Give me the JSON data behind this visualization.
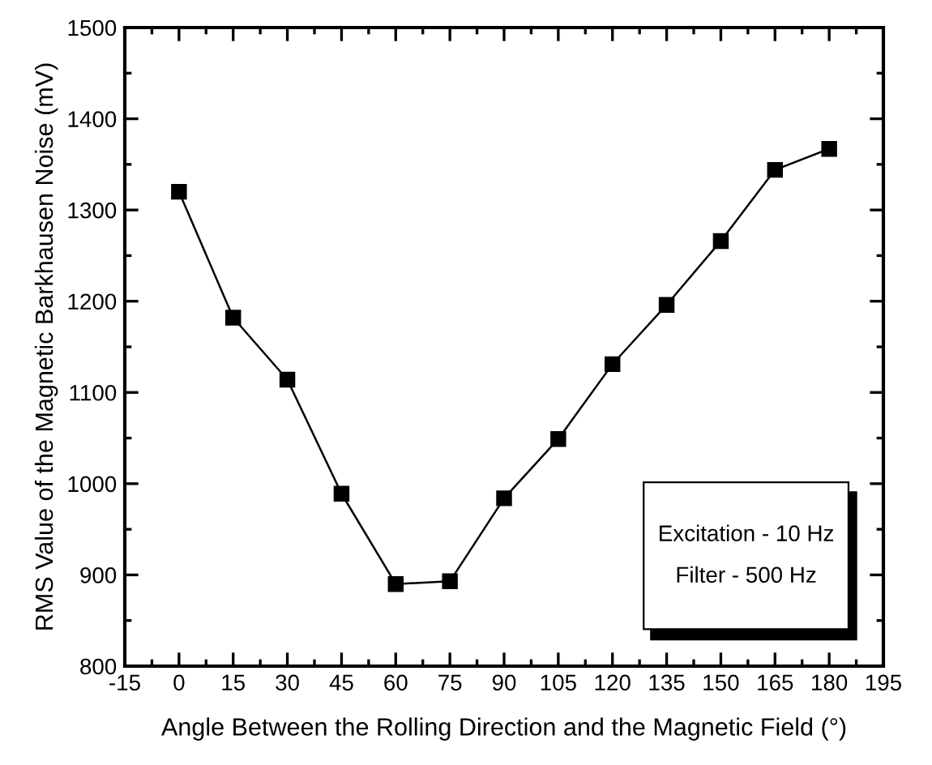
{
  "chart_data": {
    "type": "line",
    "xlabel": "Angle Between the Rolling Direction and the Magnetic Field (°)",
    "ylabel": "RMS Value of the Magnetic Barkhausen Noise (mV)",
    "x": [
      0,
      15,
      30,
      45,
      60,
      75,
      90,
      105,
      120,
      135,
      150,
      165,
      180
    ],
    "series": [
      {
        "color": "#000000",
        "values": [
          1320,
          1182,
          1114,
          989,
          890,
          893,
          984,
          1049,
          1131,
          1196,
          1266,
          1344,
          1367
        ]
      }
    ],
    "xlim": [
      -15,
      195
    ],
    "xticks": [
      -15,
      0,
      15,
      30,
      45,
      60,
      75,
      90,
      105,
      120,
      135,
      150,
      165,
      180,
      195
    ],
    "ylim": [
      800,
      1500
    ],
    "yticks": [
      800,
      900,
      1000,
      1100,
      1200,
      1300,
      1400,
      1500
    ],
    "grid": false,
    "legend": false,
    "marker": "square",
    "line_style": "solid",
    "annotations": [
      "Excitation - 10 Hz",
      "Filter - 500 Hz"
    ]
  }
}
